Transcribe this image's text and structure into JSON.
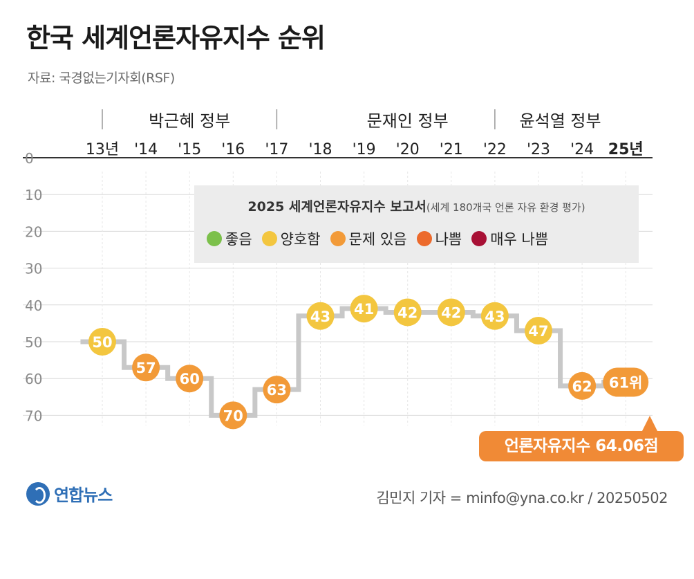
{
  "title": "한국 세계언론자유지수 순위",
  "source": "자료: 국경없는기자회(RSF)",
  "governments": [
    {
      "name": "박근혜 정부"
    },
    {
      "name": "문재인 정부"
    },
    {
      "name": "윤석열 정부"
    }
  ],
  "legend": {
    "title": "2025 세계언론자유지수 보고서",
    "subtitle": "(세계 180개국 언론 자유 환경 평가)",
    "items": [
      {
        "label": "좋음",
        "color": "#7cc04b"
      },
      {
        "label": "양호함",
        "color": "#f3c63f"
      },
      {
        "label": "문제 있음",
        "color": "#f29a38"
      },
      {
        "label": "나쁨",
        "color": "#ec6a2c"
      },
      {
        "label": "매우 나쁨",
        "color": "#a81035"
      }
    ]
  },
  "callout": "언론자유지수 64.06점",
  "logo": "연합뉴스",
  "credit": "김민지 기자 = minfo@yna.co.kr / 20250502",
  "chart_data": {
    "type": "line",
    "categories": [
      "13년",
      "'14",
      "'15",
      "'16",
      "'17",
      "'18",
      "'19",
      "'20",
      "'21",
      "'22",
      "'23",
      "'24",
      "25년"
    ],
    "values": [
      50,
      57,
      60,
      70,
      63,
      43,
      41,
      42,
      42,
      43,
      47,
      62,
      61
    ],
    "data_labels": [
      "50",
      "57",
      "60",
      "70",
      "63",
      "43",
      "41",
      "42",
      "42",
      "43",
      "47",
      "62",
      "61위"
    ],
    "point_colors": [
      "#f3c63f",
      "#f29a38",
      "#f29a38",
      "#f29a38",
      "#f29a38",
      "#f3c63f",
      "#f3c63f",
      "#f3c63f",
      "#f3c63f",
      "#f3c63f",
      "#f3c63f",
      "#f29a38",
      "#f29a38"
    ],
    "y_ticks": [
      "0",
      "10",
      "20",
      "30",
      "40",
      "50",
      "60",
      "70"
    ],
    "ylim": [
      0,
      70
    ],
    "y_reversed": true,
    "grid": true,
    "line_color": "#c8c8c8"
  }
}
